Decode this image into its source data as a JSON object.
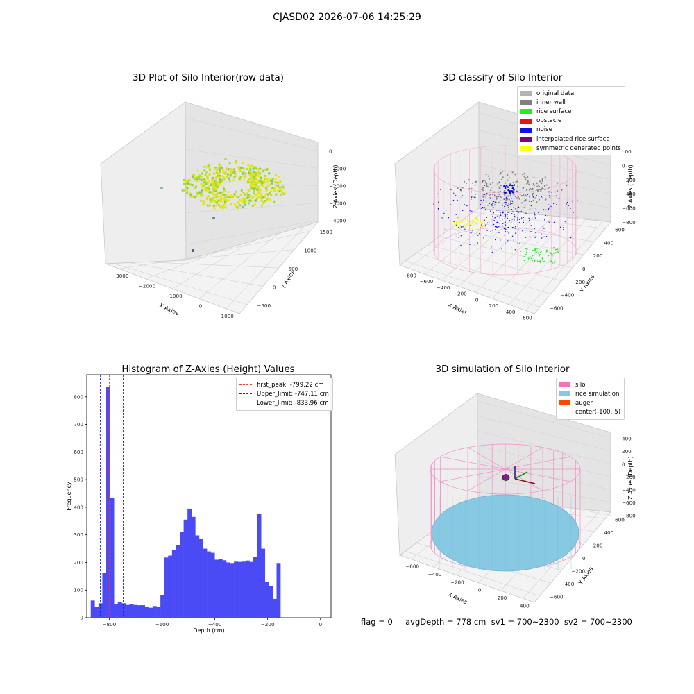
{
  "suptitle": "CJASD02 2026-07-06 14:25:29",
  "footer": "flag = 0     avgDepth = 778 cm  sv1 = 700~2300  sv2 = 700~2300",
  "colors": {
    "histogram_bars": "#4b4bf5",
    "first_peak_line": "#ff3333",
    "limit_lines": "#2222cc",
    "silo_wire": "#f48fc8",
    "rice_simulation": "#87c9e3"
  },
  "chart_data": [
    {
      "type": "scatter",
      "title": "3D Plot of Silo Interior(row data)",
      "xlabel": "X Axies",
      "ylabel": "Y Axies",
      "zlabel": "Z Axies (Depth)",
      "x_ticks": [
        "−3000",
        "−2000",
        "−1000",
        "0",
        "1000"
      ],
      "y_ticks": [
        "−500",
        "0",
        "500",
        "1000",
        "1500"
      ],
      "z_ticks": [
        "0",
        "−1000",
        "−2000",
        "−3000",
        "−4000"
      ],
      "colormap": "viridis"
    },
    {
      "type": "scatter",
      "title": "3D classify of Silo Interior",
      "xlabel": "X Axies",
      "ylabel": "Y Axies",
      "zlabel": "Z Axies (Depth)",
      "x_ticks": [
        "−800",
        "−600",
        "−400",
        "−200",
        "0",
        "200",
        "400",
        "600"
      ],
      "y_ticks": [
        "−600",
        "−400",
        "−200",
        "0",
        "200",
        "400",
        "600"
      ],
      "z_ticks": [
        "200",
        "0",
        "−200",
        "−400",
        "−600",
        "−800"
      ],
      "legend_position": "top-right",
      "legend": [
        {
          "label": "original data",
          "color": "#b3b3b3"
        },
        {
          "label": "inner wall",
          "color": "#808080"
        },
        {
          "label": "rice surface",
          "color": "#22ee22"
        },
        {
          "label": "obstacle",
          "color": "#ee1111"
        },
        {
          "label": "noise",
          "color": "#1111ee"
        },
        {
          "label": "interpolated rice surface",
          "color": "#800080"
        },
        {
          "label": "symmetric generated points",
          "color": "#ffff11"
        }
      ]
    },
    {
      "type": "bar",
      "title": "Histogram of Z-Axies (Height) Values",
      "xlabel": "Depth (cm)",
      "ylabel": "Frequency",
      "xlim": [
        -885,
        40
      ],
      "ylim": [
        0,
        880
      ],
      "x_ticks": [
        -800,
        -600,
        -400,
        -200,
        0
      ],
      "y_ticks": [
        0,
        100,
        200,
        300,
        400,
        500,
        600,
        700,
        800
      ],
      "bin_start": -870,
      "bin_width": 14.66,
      "values": [
        62,
        38,
        52,
        162,
        835,
        433,
        50,
        58,
        52,
        46,
        48,
        46,
        45,
        45,
        38,
        36,
        42,
        38,
        82,
        218,
        225,
        245,
        262,
        310,
        355,
        395,
        365,
        298,
        285,
        250,
        240,
        235,
        210,
        212,
        208,
        200,
        198,
        203,
        202,
        203,
        207,
        202,
        220,
        375,
        250,
        130,
        115,
        68,
        198
      ],
      "vlines": [
        {
          "label": "first_peak: -799.22 cm",
          "x": -799.22,
          "color": "#ff3333"
        },
        {
          "label": "Upper_limit: -747.11 cm",
          "x": -747.11,
          "color": "#2222cc"
        },
        {
          "label": "Lower_limit: -833.96 cm",
          "x": -833.96,
          "color": "#2222cc"
        }
      ],
      "legend_position": "top-right"
    },
    {
      "type": "scatter",
      "title": "3D simulation of Silo Interior",
      "xlabel": "X Axies",
      "ylabel": "Y Axies",
      "zlabel": "Z Axies (Depth)",
      "x_ticks": [
        "−600",
        "−400",
        "−200",
        "0",
        "200",
        "400"
      ],
      "y_ticks": [
        "−600",
        "−400",
        "−200",
        "0",
        "200",
        "400",
        "600"
      ],
      "z_ticks": [
        "400",
        "200",
        "0",
        "−200",
        "−400",
        "−600",
        "−800"
      ],
      "legend_position": "top-right",
      "legend": [
        {
          "label": "silo",
          "color": "#f472b6"
        },
        {
          "label": "rice simulation",
          "color": "#87c9e3"
        },
        {
          "label": "auger",
          "color": "#ff4500"
        },
        {
          "label": "center(-100,-5)",
          "color": ""
        }
      ]
    }
  ]
}
